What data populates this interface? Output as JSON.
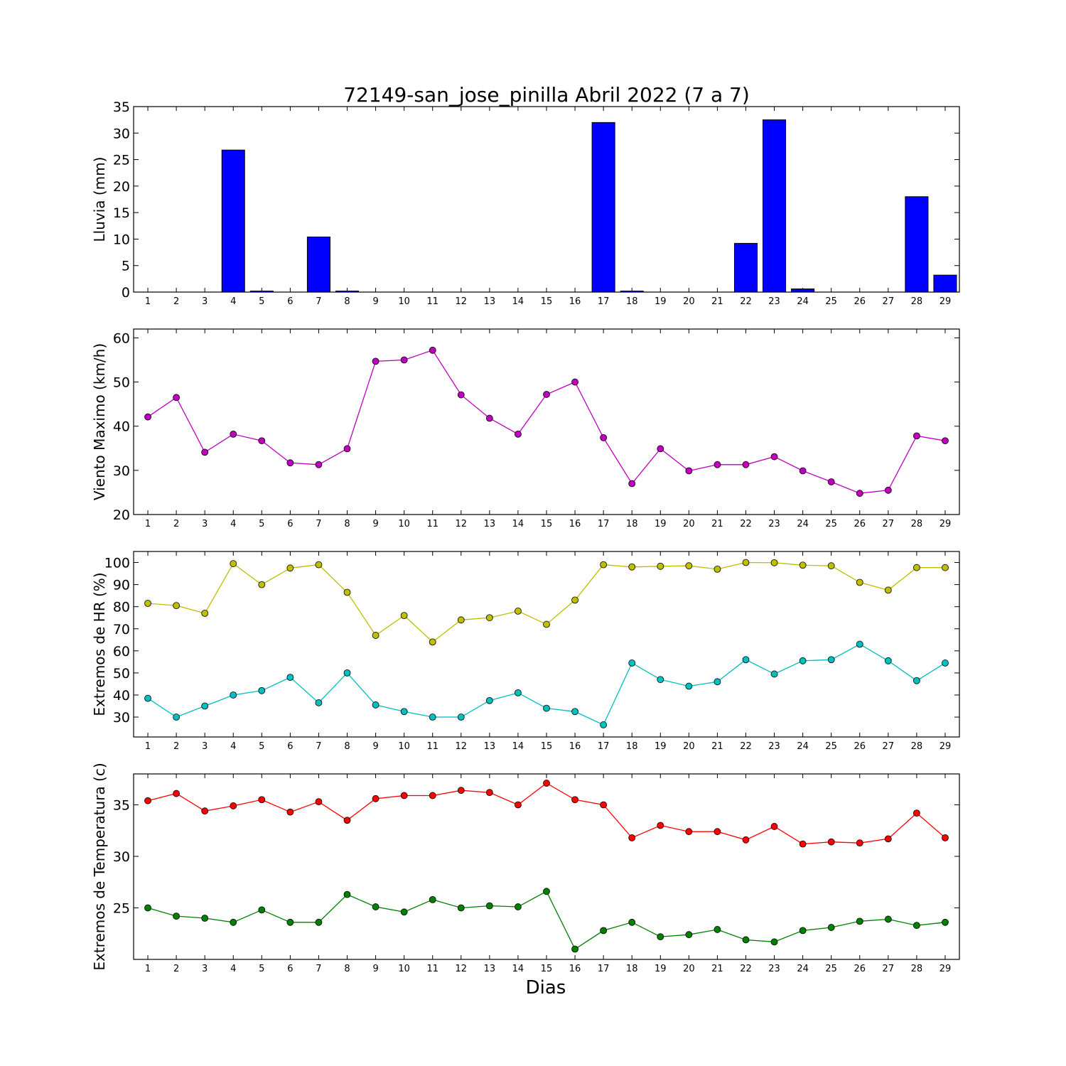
{
  "title": "72149-san_jose_pinilla Abril 2022  (7 a 7)",
  "xlabel": "Dias",
  "chart_data": [
    {
      "type": "bar",
      "ylabel": "Lluvia (mm)",
      "ylim": [
        0,
        35
      ],
      "yticks": [
        0,
        5,
        10,
        15,
        20,
        25,
        30,
        35
      ],
      "categories": [
        1,
        2,
        3,
        4,
        5,
        6,
        7,
        8,
        9,
        10,
        11,
        12,
        13,
        14,
        15,
        16,
        17,
        18,
        19,
        20,
        21,
        22,
        23,
        24,
        25,
        26,
        27,
        28,
        29
      ],
      "series": [
        {
          "color": "#0000ff",
          "values": [
            0,
            0,
            0,
            26.8,
            0.2,
            0,
            10.4,
            0.2,
            0,
            0,
            0,
            0,
            0,
            0,
            0,
            0,
            32.0,
            0.2,
            0,
            0,
            0,
            9.2,
            32.5,
            0.6,
            0,
            0,
            0,
            18.0,
            3.2
          ]
        }
      ],
      "grid": false
    },
    {
      "type": "line",
      "ylabel": "Viento Maximo (km/h)",
      "ylim": [
        20,
        62
      ],
      "yticks": [
        20,
        30,
        40,
        50,
        60
      ],
      "categories": [
        1,
        2,
        3,
        4,
        5,
        6,
        7,
        8,
        9,
        10,
        11,
        12,
        13,
        14,
        15,
        16,
        17,
        18,
        19,
        20,
        21,
        22,
        23,
        24,
        25,
        26,
        27,
        28,
        29
      ],
      "series": [
        {
          "color": "#bf00bf",
          "values": [
            42.1,
            46.5,
            34.1,
            38.2,
            36.7,
            31.7,
            31.3,
            34.9,
            54.7,
            55.0,
            57.2,
            47.1,
            41.8,
            38.2,
            47.2,
            50.0,
            37.4,
            27.0,
            34.9,
            29.9,
            31.3,
            31.3,
            33.1,
            29.9,
            27.4,
            24.8,
            25.5,
            37.8,
            36.7
          ]
        }
      ],
      "grid": false
    },
    {
      "type": "line",
      "ylabel": "Extremos de HR (%)",
      "ylim": [
        21,
        105
      ],
      "yticks": [
        30,
        40,
        50,
        60,
        70,
        80,
        90,
        100
      ],
      "categories": [
        1,
        2,
        3,
        4,
        5,
        6,
        7,
        8,
        9,
        10,
        11,
        12,
        13,
        14,
        15,
        16,
        17,
        18,
        19,
        20,
        21,
        22,
        23,
        24,
        25,
        26,
        27,
        28,
        29
      ],
      "series": [
        {
          "color": "#bfbf00",
          "values": [
            81.5,
            80.5,
            77.0,
            99.5,
            90.0,
            97.5,
            99.0,
            86.5,
            67.0,
            76.0,
            64.0,
            74.0,
            75.0,
            78.0,
            72.0,
            83.0,
            99.0,
            98.0,
            98.3,
            98.5,
            97.0,
            100.0,
            99.9,
            98.8,
            98.5,
            91.0,
            87.5,
            97.7,
            97.7
          ]
        },
        {
          "color": "#00bfbf",
          "values": [
            38.5,
            30.0,
            35.0,
            40.0,
            42.0,
            48.0,
            36.5,
            50.0,
            35.5,
            32.5,
            30.0,
            30.0,
            37.5,
            41.0,
            34.0,
            32.5,
            26.5,
            54.5,
            47.0,
            44.0,
            46.0,
            56.0,
            49.5,
            55.5,
            56.0,
            63.0,
            55.5,
            46.5,
            54.5
          ]
        }
      ],
      "grid": false
    },
    {
      "type": "line",
      "ylabel": "Extremos de Temperatura (c)",
      "ylim": [
        20,
        38
      ],
      "yticks": [
        25,
        30,
        35
      ],
      "categories": [
        1,
        2,
        3,
        4,
        5,
        6,
        7,
        8,
        9,
        10,
        11,
        12,
        13,
        14,
        15,
        16,
        17,
        18,
        19,
        20,
        21,
        22,
        23,
        24,
        25,
        26,
        27,
        28,
        29
      ],
      "series": [
        {
          "color": "#ff0000",
          "values": [
            35.4,
            36.1,
            34.4,
            34.9,
            35.5,
            34.3,
            35.3,
            33.5,
            35.6,
            35.9,
            35.9,
            36.4,
            36.2,
            35.0,
            37.1,
            35.5,
            35.0,
            31.8,
            33.0,
            32.4,
            32.4,
            31.6,
            32.9,
            31.2,
            31.4,
            31.3,
            31.7,
            34.2,
            31.8
          ]
        },
        {
          "color": "#008000",
          "values": [
            25.0,
            24.2,
            24.0,
            23.6,
            24.8,
            23.6,
            23.6,
            26.3,
            25.1,
            24.6,
            25.8,
            25.0,
            25.2,
            25.1,
            26.6,
            21.0,
            22.8,
            23.6,
            22.2,
            22.4,
            22.9,
            21.9,
            21.7,
            22.8,
            23.1,
            23.7,
            23.9,
            23.3,
            23.6
          ]
        }
      ],
      "grid": false
    }
  ]
}
